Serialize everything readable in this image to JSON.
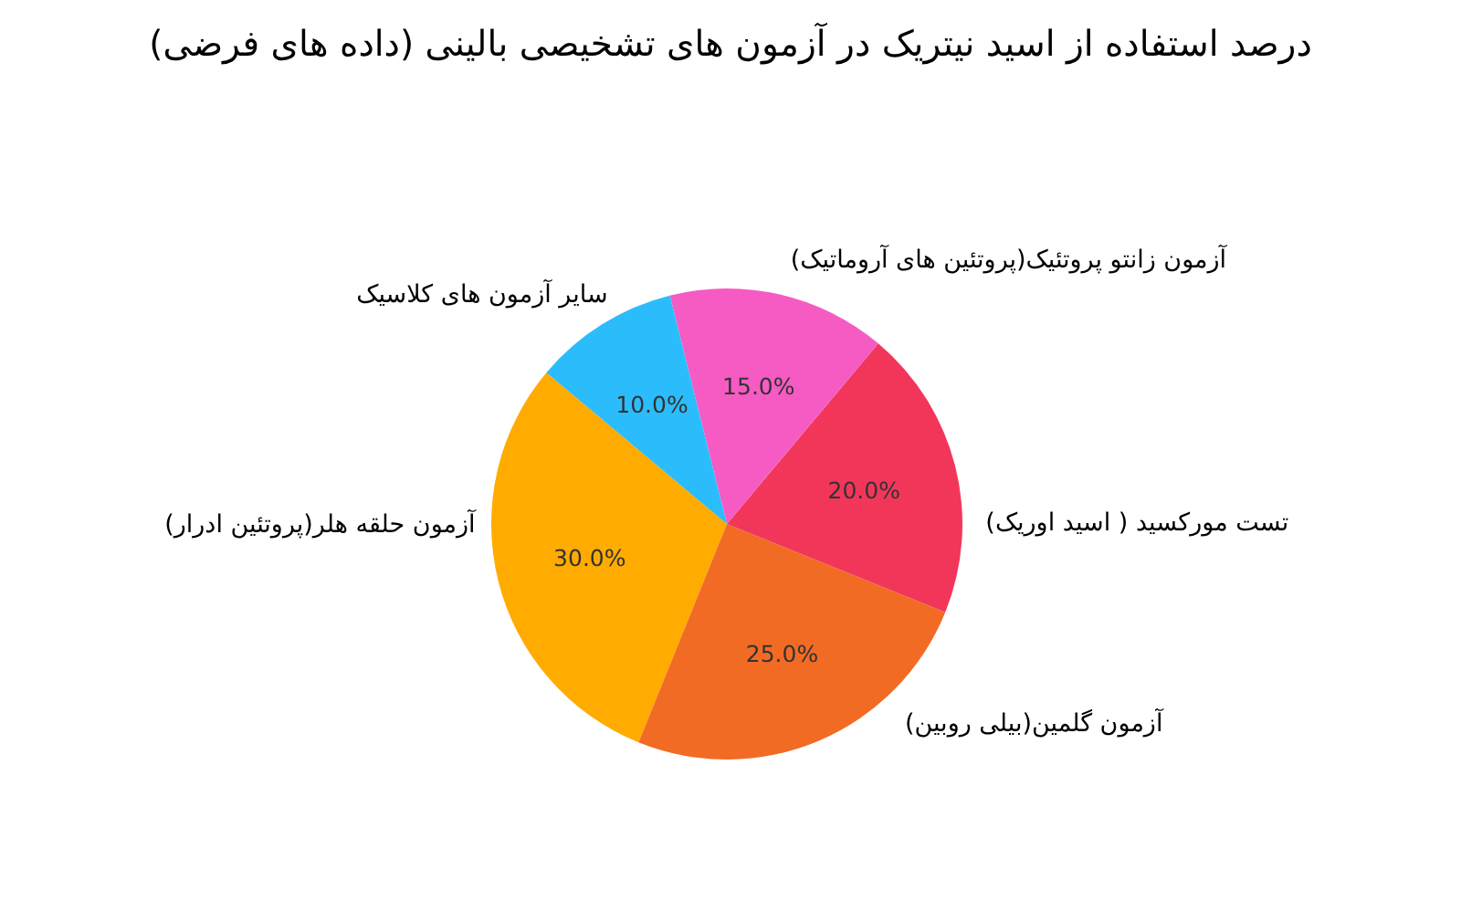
{
  "chart_data": {
    "type": "pie",
    "title": "درصد استفاده از اسید نیتریک در آزمون های تشخیصی بالینی (داده های فرضی)",
    "categories": [
      "آزمون حلقه هلر(پروتئین ادرار)",
      "آزمون گلمین(بیلی روبین)",
      "تست مورکسید ( اسید اوریک)",
      "آزمون زانتو پروتئیک(پروتئین های آروماتیک)",
      "سایر آزمون های کلاسیک"
    ],
    "values": [
      30,
      25,
      20,
      15,
      10
    ],
    "colors": [
      "#ffab00",
      "#f26b24",
      "#f2365a",
      "#f65bc4",
      "#2bbcfb"
    ],
    "value_labels": [
      "30.0%",
      "25.0%",
      "20.0%",
      "15.0%",
      "10.0%"
    ]
  }
}
